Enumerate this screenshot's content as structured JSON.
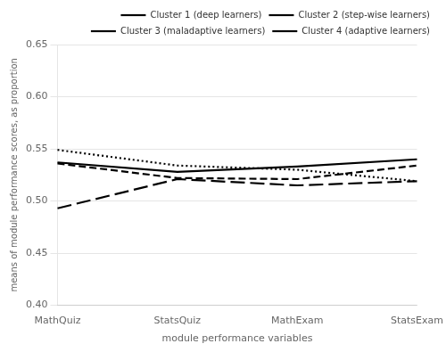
{
  "chart_data": {
    "type": "line",
    "categories": [
      "MathQuiz",
      "StatsQuiz",
      "MathExam",
      "StatsExam"
    ],
    "series": [
      {
        "name": "Cluster 1 (deep learners)",
        "color": "black",
        "line_style": "solid",
        "values": [
          0.537,
          0.528,
          0.533,
          0.54
        ]
      },
      {
        "name": "Cluster 2 (step-wise learners)",
        "color": "black",
        "line_style": "dotted",
        "values": [
          0.549,
          0.534,
          0.53,
          0.519
        ]
      },
      {
        "name": "Cluster 3 (maladaptive learners)",
        "color": "black",
        "line_style": "dashed",
        "values": [
          0.536,
          0.522,
          0.521,
          0.534
        ]
      },
      {
        "name": "Cluster 4 (adaptive learners)",
        "color": "black",
        "line_style": "longdash",
        "values": [
          0.493,
          0.521,
          0.515,
          0.519
        ]
      }
    ],
    "x_label": "module performance variables",
    "y_label": "means of module performance scores, as proportion",
    "ylim": [
      0.4,
      0.65
    ],
    "yticks": [
      {
        "value": 0.4,
        "label": "0.40"
      },
      0.45,
      {
        "value": 0.5,
        "label": "0.50"
      },
      0.55,
      {
        "value": 0.6,
        "label": "0.60"
      },
      0.65
    ],
    "grid": true,
    "legend": "upper right"
  }
}
